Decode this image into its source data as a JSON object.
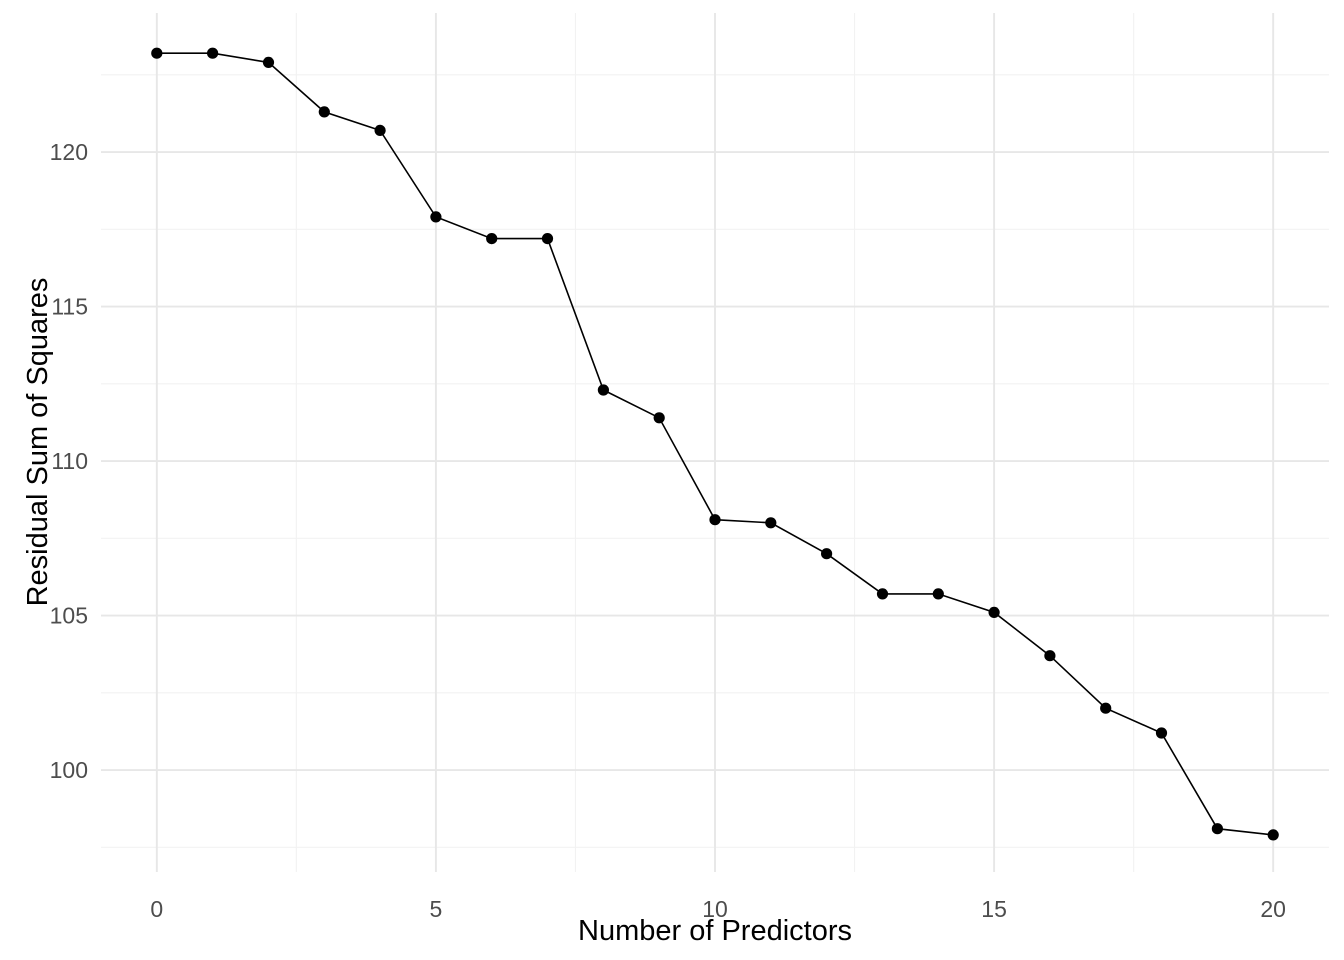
{
  "page": {
    "background": "#FFFFFF"
  },
  "chart_data": {
    "type": "line",
    "title": "",
    "xlabel": "Number of Predictors",
    "ylabel": "Residual Sum of Squares",
    "x": [
      0,
      1,
      2,
      3,
      4,
      5,
      6,
      7,
      8,
      9,
      10,
      11,
      12,
      13,
      14,
      15,
      16,
      17,
      18,
      19,
      20
    ],
    "y": [
      123.2,
      123.2,
      122.9,
      121.3,
      120.7,
      117.9,
      117.2,
      117.2,
      112.3,
      111.4,
      108.1,
      108.0,
      107.0,
      105.7,
      105.7,
      105.1,
      103.7,
      102.0,
      101.2,
      98.1,
      97.9
    ],
    "xlim": [
      -1,
      21
    ],
    "ylim": [
      96.7,
      124.5
    ],
    "x_major_ticks": [
      0,
      5,
      10,
      15,
      20
    ],
    "x_tick_labels": [
      "0",
      "5",
      "10",
      "15",
      "20"
    ],
    "x_minor_ticks": [
      2.5,
      7.5,
      12.5,
      17.5
    ],
    "y_major_ticks": [
      100,
      105,
      110,
      115,
      120
    ],
    "y_tick_labels": [
      "100",
      "105",
      "110",
      "115",
      "120"
    ],
    "y_minor_ticks": [
      97.5,
      102.5,
      107.5,
      112.5,
      117.5,
      122.5
    ],
    "grid": "major+minor",
    "legend_position": "none",
    "marker": "point",
    "colors": {
      "line": "#000000",
      "point": "#000000",
      "grid_major": "#E7E7E7",
      "grid_minor": "#F2F2F2",
      "tick_label": "#4D4D4D",
      "axis_title": "#000000",
      "panel_background": "#FFFFFF"
    }
  }
}
